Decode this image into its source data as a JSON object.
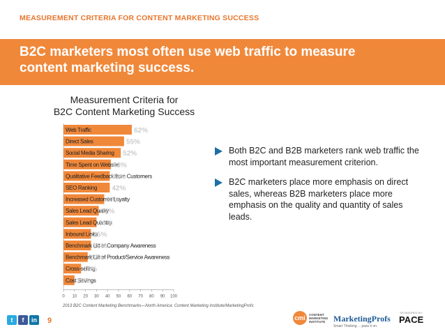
{
  "header": {
    "section_label": "MEASUREMENT CRITERIA FOR CONTENT MARKETING SUCCESS",
    "banner_line1": "B2C marketers most often use web traffic to measure",
    "banner_line2": "content marketing success.",
    "banner_color": "#f0883a",
    "accent_color": "#e8762c"
  },
  "chart_data": {
    "type": "bar",
    "orientation": "horizontal",
    "title_line1": "Measurement Criteria for",
    "title_line2": "B2C Content Marketing Success",
    "categories": [
      "Web Traffic",
      "Direct Sales",
      "Social Media Sharing",
      "Time Spent on Website",
      "Qualitative Feedback from Customers",
      "SEO Ranking",
      "Increased Customer Loyalty",
      "Sales Lead Quality",
      "Sales Lead Quantity",
      "Inbound Links",
      "Benchmark Lift of Company Awareness",
      "Benchmark Lift of Product/Service Awareness",
      "Cross-selling",
      "Cost Savings"
    ],
    "values": [
      62,
      55,
      52,
      43,
      42,
      42,
      37,
      32,
      30,
      25,
      25,
      22,
      16,
      10
    ],
    "value_labels": [
      "62%",
      "55%",
      "52%",
      "43%",
      "42%",
      "42%",
      "37%",
      "32%",
      "30%",
      "25%",
      "25%",
      "22%",
      "16%",
      "10%"
    ],
    "xlim": [
      0,
      100
    ],
    "xticks": [
      0,
      10,
      20,
      30,
      40,
      50,
      60,
      70,
      80,
      90,
      100
    ],
    "bar_color": "#f0883a",
    "value_label_color": "#cccccc",
    "grid": false
  },
  "bullets": [
    "Both B2C and B2B marketers rank web traffic the most important measurement criterion.",
    "B2C marketers place more emphasis on direct sales, whereas B2B marketers place more emphasis on the quality and quantity of sales leads."
  ],
  "footer": {
    "source": "2013 B2C Content Marketing Benchmarks—North America: Content Marketing Institute/MarketingProfs",
    "page_number": "9",
    "social_icons": [
      "twitter-icon",
      "facebook-icon",
      "linkedin-icon"
    ],
    "cmi_logo_letters": "cmi",
    "cmi_logo_line1": "CONTENT",
    "cmi_logo_line2": "MARKETING",
    "cmi_logo_line3": "INSTITUTE",
    "mp_name": "MarketingProfs",
    "mp_tagline": "Smart Thinking ... pass it on.",
    "sponsor_label": "SPONSORED BY:",
    "sponsor_name": "PACE"
  }
}
